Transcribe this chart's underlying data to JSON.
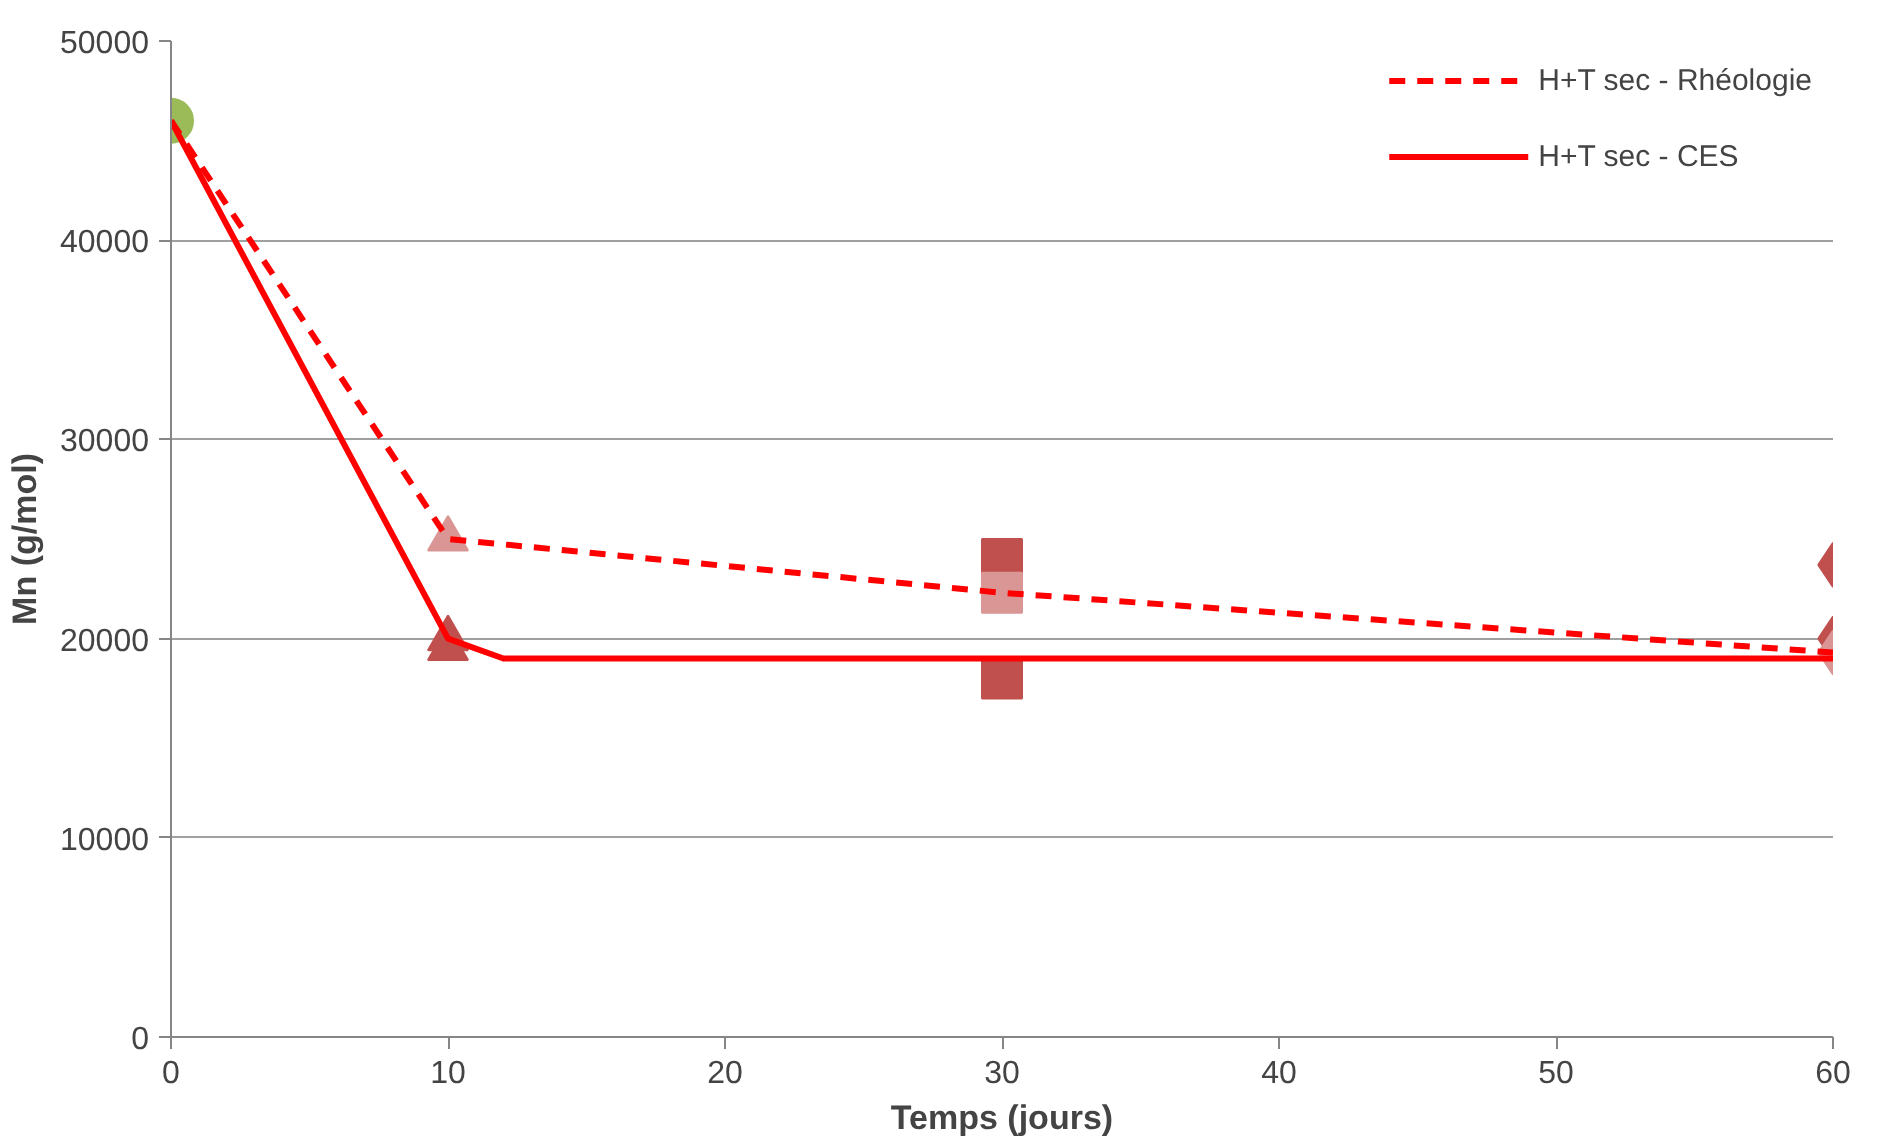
{
  "chart_data": {
    "type": "line",
    "xlabel": "Temps (jours)",
    "ylabel": "Mn (g/mol)",
    "xlim": [
      0,
      60
    ],
    "xticks": [
      0,
      10,
      20,
      30,
      40,
      50,
      60
    ],
    "ylim": [
      0,
      50000
    ],
    "yticks": [
      0,
      10000,
      20000,
      30000,
      40000,
      50000
    ],
    "grid": "y",
    "legend": "top right",
    "series": [
      {
        "name": "H+T sec - Rhéologie",
        "line_style": "dashed",
        "color": "#ff0000",
        "x": [
          0,
          10,
          30,
          60
        ],
        "values": [
          46000,
          25000,
          22300,
          19300
        ]
      },
      {
        "name": "H+T sec - CES",
        "line_style": "solid",
        "color": "#ff0000",
        "x": [
          0,
          10,
          12,
          60
        ],
        "values": [
          46000,
          20000,
          19000,
          19000
        ]
      },
      {
        "type": "scatter",
        "marker": "circle",
        "color": "#9bbb59",
        "x": [
          0
        ],
        "values": [
          46000
        ]
      },
      {
        "type": "scatter",
        "marker": "triangle",
        "color": "#c0504d",
        "x": [
          10,
          10
        ],
        "values": [
          20000,
          19500
        ]
      },
      {
        "type": "scatter",
        "marker": "triangle",
        "color": "#d99694",
        "x": [
          10
        ],
        "values": [
          25000
        ]
      },
      {
        "type": "scatter",
        "marker": "square",
        "color": "#c0504d",
        "x": [
          30,
          30
        ],
        "values": [
          24000,
          18000
        ]
      },
      {
        "type": "scatter",
        "marker": "square",
        "color": "#d99694",
        "x": [
          30
        ],
        "values": [
          22300
        ]
      },
      {
        "type": "scatter",
        "marker": "diamond",
        "color": "#c0504d",
        "x": [
          60,
          60
        ],
        "values": [
          23700,
          20000
        ]
      },
      {
        "type": "scatter",
        "marker": "diamond",
        "color": "#d99694",
        "x": [
          60
        ],
        "values": [
          19300
        ]
      }
    ]
  }
}
